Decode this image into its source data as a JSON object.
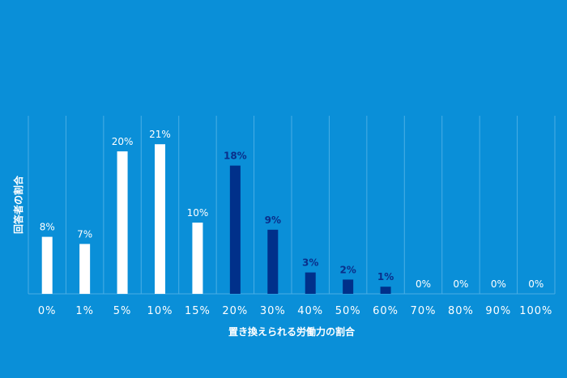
{
  "chart_data": {
    "type": "bar",
    "title": "",
    "xlabel": "置き換えられる労働力の割合",
    "ylabel": "回答者の割合",
    "categories": [
      "0%",
      "1%",
      "5%",
      "10%",
      "15%",
      "20%",
      "30%",
      "40%",
      "50%",
      "60%",
      "70%",
      "80%",
      "90%",
      "100%"
    ],
    "values": [
      8,
      7,
      20,
      21,
      10,
      18,
      9,
      3,
      2,
      1,
      0,
      0,
      0,
      0
    ],
    "data_labels": [
      "8%",
      "7%",
      "20%",
      "21%",
      "10%",
      "18%",
      "9%",
      "3%",
      "2%",
      "1%",
      "0%",
      "0%",
      "0%",
      "0%"
    ],
    "highlighted": [
      false,
      false,
      false,
      false,
      false,
      true,
      true,
      true,
      true,
      true,
      false,
      false,
      false,
      false
    ],
    "ylim": [
      0,
      25
    ],
    "grid": "vertical category separators",
    "legend": "none",
    "colors": {
      "background": "#0a8fd8",
      "bar": "#ffffff",
      "bar_highlight": "#00308a",
      "label": "#ffffff",
      "label_highlight": "#0a2f8a",
      "grid": "#4aaee5"
    }
  }
}
